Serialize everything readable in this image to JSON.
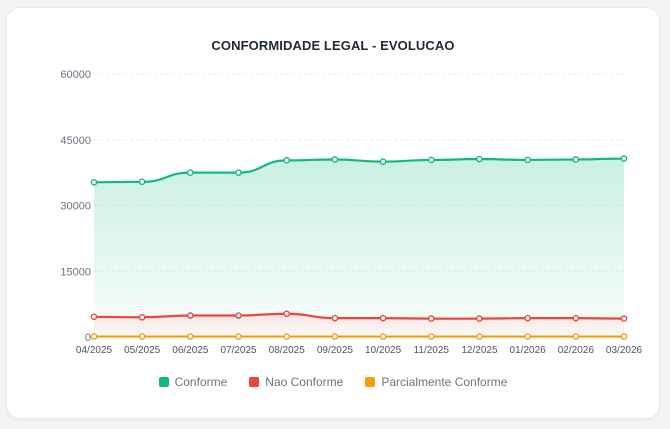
{
  "chart_data": {
    "type": "area",
    "title": "CONFORMIDADE LEGAL - EVOLUCAO",
    "categories": [
      "04/2025",
      "05/2025",
      "06/2025",
      "07/2025",
      "08/2025",
      "09/2025",
      "10/2025",
      "11/2025",
      "12/2025",
      "01/2026",
      "02/2026",
      "03/2026"
    ],
    "ylim": [
      0,
      60000
    ],
    "yticks": [
      0,
      15000,
      30000,
      45000,
      60000
    ],
    "grid": true,
    "legend_position": "bottom",
    "series": [
      {
        "name": "Conforme",
        "color": "#10b981",
        "fill": true,
        "values": [
          35300,
          35400,
          37500,
          37500,
          40300,
          40500,
          40000,
          40400,
          40600,
          40400,
          40500,
          40700
        ]
      },
      {
        "name": "Nao Conforme",
        "color": "#ef4444",
        "fill": true,
        "values": [
          4600,
          4500,
          4900,
          4900,
          5300,
          4300,
          4300,
          4200,
          4200,
          4300,
          4300,
          4200
        ]
      },
      {
        "name": "Parcialmente Conforme",
        "color": "#f59e0b",
        "fill": false,
        "values": [
          100,
          100,
          100,
          100,
          100,
          100,
          100,
          100,
          100,
          100,
          100,
          100
        ]
      }
    ]
  }
}
